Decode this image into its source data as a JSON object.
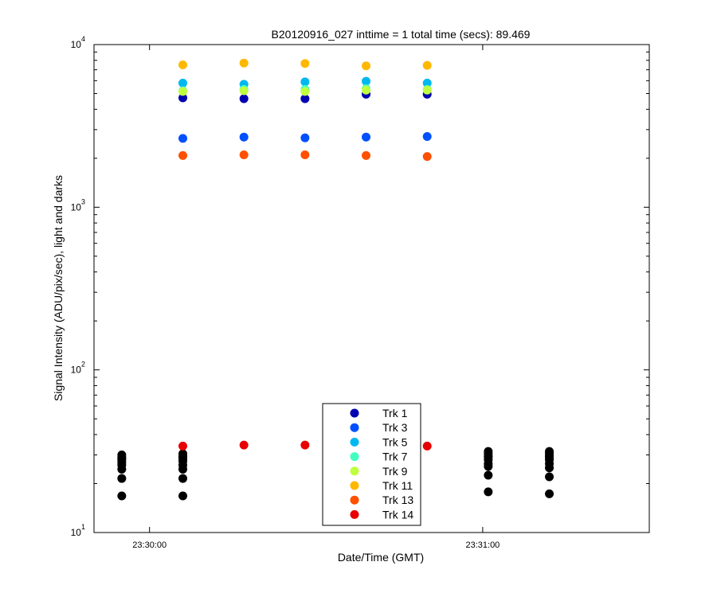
{
  "chart_data": {
    "type": "scatter",
    "title": "B20120916_027 inttime = 1 total time (secs): 89.469",
    "xlabel": "Date/Time (GMT)",
    "ylabel": "Signal Intensity (ADU/pix/sec), light and darks",
    "y_scale": "log",
    "ylim": [
      10,
      10000
    ],
    "xlim": [
      "23:29:50",
      "23:31:30"
    ],
    "x_ticks": [
      "23:30:00",
      "23:31:00"
    ],
    "y_ticks": [
      {
        "value": 10,
        "base": "10",
        "exp": "1"
      },
      {
        "value": 100,
        "base": "10",
        "exp": "2"
      },
      {
        "value": 1000,
        "base": "10",
        "exp": "3"
      },
      {
        "value": 10000,
        "base": "10",
        "exp": "4"
      }
    ],
    "grid": false,
    "legend_position": "bottom-center",
    "light_times": [
      "23:30:06",
      "23:30:17",
      "23:30:28",
      "23:30:39",
      "23:30:50"
    ],
    "dark_times": [
      "23:29:55",
      "23:30:06",
      "23:31:01",
      "23:31:12"
    ],
    "series": [
      {
        "name": "Trk 1",
        "color": "#0000b0",
        "values": [
          4700,
          4650,
          4650,
          4950,
          4950
        ]
      },
      {
        "name": "Trk 3",
        "color": "#0050ff",
        "values": [
          2650,
          2700,
          2670,
          2700,
          2720
        ]
      },
      {
        "name": "Trk 5",
        "color": "#00b8f0",
        "values": [
          5800,
          5700,
          5900,
          5950,
          5800
        ]
      },
      {
        "name": "Trk 7",
        "color": "#40ffc0",
        "values": [
          5200,
          5300,
          5300,
          5350,
          5300
        ]
      },
      {
        "name": "Trk 9",
        "color": "#c0ff40",
        "values": [
          5150,
          5200,
          5150,
          5250,
          5250
        ]
      },
      {
        "name": "Trk 11",
        "color": "#ffb800",
        "values": [
          7500,
          7700,
          7650,
          7400,
          7450
        ]
      },
      {
        "name": "Trk 13",
        "color": "#ff5000",
        "values": [
          2080,
          2100,
          2100,
          2080,
          2050
        ]
      },
      {
        "name": "Trk 14",
        "color": "#e80000",
        "values": [
          34,
          34.5,
          34.5,
          34.5,
          34
        ]
      }
    ],
    "dark_series": {
      "color": "#000000",
      "values": [
        [
          30,
          29,
          28.5,
          28,
          27,
          26,
          24.5,
          21.5,
          16.8
        ],
        [
          30.5,
          29.5,
          29,
          28.5,
          27.5,
          26,
          24.5,
          21.5,
          16.8
        ],
        [
          31.5,
          30.5,
          29.5,
          29,
          28,
          26.5,
          25.5,
          22.5,
          17.8
        ],
        [
          31.5,
          30.5,
          29.5,
          29,
          28,
          26.5,
          25,
          22,
          17.3
        ]
      ]
    }
  }
}
